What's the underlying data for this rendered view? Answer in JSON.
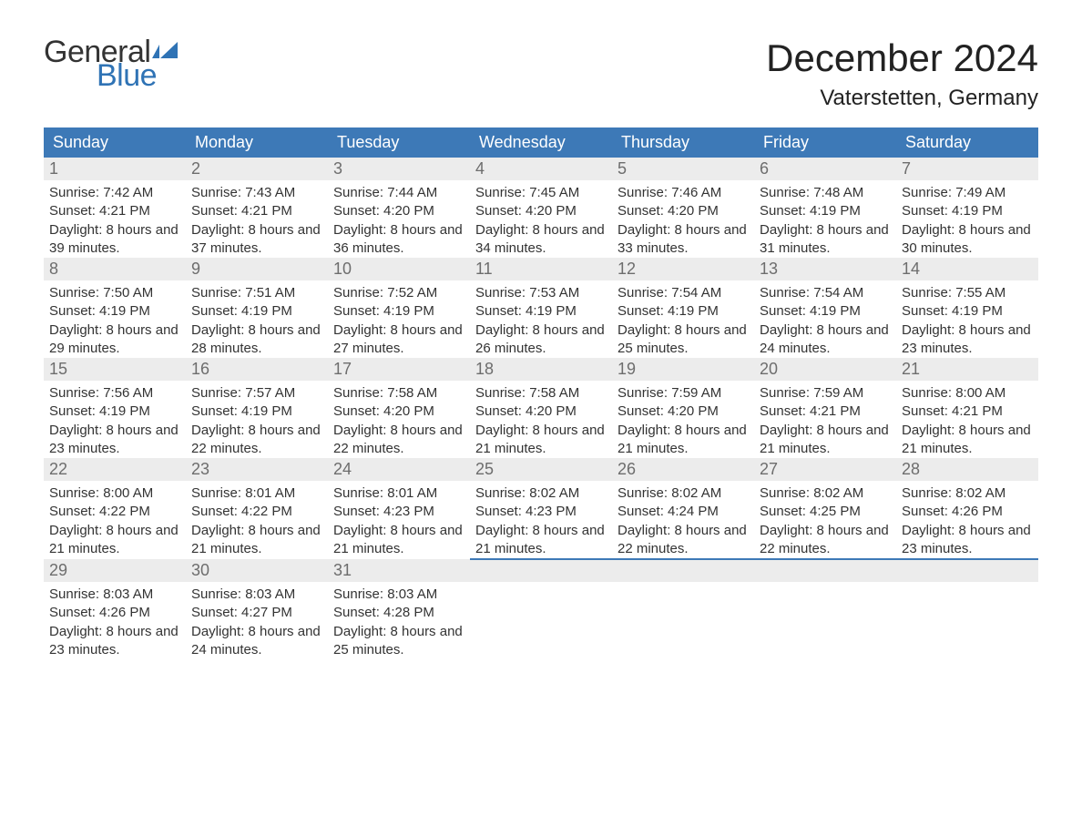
{
  "logo": {
    "word1": "General",
    "word2": "Blue",
    "word1_color": "#333333",
    "word2_color": "#2f73b5",
    "flag_color": "#2f73b5"
  },
  "header": {
    "title": "December 2024",
    "location": "Vaterstetten, Germany"
  },
  "colors": {
    "header_bg": "#3d79b7",
    "header_text": "#ffffff",
    "daynum_bg": "#ececec",
    "daynum_color": "#6d6d6d",
    "row_border": "#3d79b7",
    "body_text": "#333333",
    "page_bg": "#ffffff"
  },
  "typography": {
    "title_fontsize": 42,
    "location_fontsize": 24,
    "weekday_fontsize": 18,
    "daynum_fontsize": 18,
    "body_fontsize": 15
  },
  "weekdays": [
    "Sunday",
    "Monday",
    "Tuesday",
    "Wednesday",
    "Thursday",
    "Friday",
    "Saturday"
  ],
  "labels": {
    "sunrise": "Sunrise:",
    "sunset": "Sunset:",
    "daylight_prefix": "Daylight:"
  },
  "weeks": [
    [
      {
        "day": "1",
        "sunrise": "7:42 AM",
        "sunset": "4:21 PM",
        "daylight": "8 hours and 39 minutes."
      },
      {
        "day": "2",
        "sunrise": "7:43 AM",
        "sunset": "4:21 PM",
        "daylight": "8 hours and 37 minutes."
      },
      {
        "day": "3",
        "sunrise": "7:44 AM",
        "sunset": "4:20 PM",
        "daylight": "8 hours and 36 minutes."
      },
      {
        "day": "4",
        "sunrise": "7:45 AM",
        "sunset": "4:20 PM",
        "daylight": "8 hours and 34 minutes."
      },
      {
        "day": "5",
        "sunrise": "7:46 AM",
        "sunset": "4:20 PM",
        "daylight": "8 hours and 33 minutes."
      },
      {
        "day": "6",
        "sunrise": "7:48 AM",
        "sunset": "4:19 PM",
        "daylight": "8 hours and 31 minutes."
      },
      {
        "day": "7",
        "sunrise": "7:49 AM",
        "sunset": "4:19 PM",
        "daylight": "8 hours and 30 minutes."
      }
    ],
    [
      {
        "day": "8",
        "sunrise": "7:50 AM",
        "sunset": "4:19 PM",
        "daylight": "8 hours and 29 minutes."
      },
      {
        "day": "9",
        "sunrise": "7:51 AM",
        "sunset": "4:19 PM",
        "daylight": "8 hours and 28 minutes."
      },
      {
        "day": "10",
        "sunrise": "7:52 AM",
        "sunset": "4:19 PM",
        "daylight": "8 hours and 27 minutes."
      },
      {
        "day": "11",
        "sunrise": "7:53 AM",
        "sunset": "4:19 PM",
        "daylight": "8 hours and 26 minutes."
      },
      {
        "day": "12",
        "sunrise": "7:54 AM",
        "sunset": "4:19 PM",
        "daylight": "8 hours and 25 minutes."
      },
      {
        "day": "13",
        "sunrise": "7:54 AM",
        "sunset": "4:19 PM",
        "daylight": "8 hours and 24 minutes."
      },
      {
        "day": "14",
        "sunrise": "7:55 AM",
        "sunset": "4:19 PM",
        "daylight": "8 hours and 23 minutes."
      }
    ],
    [
      {
        "day": "15",
        "sunrise": "7:56 AM",
        "sunset": "4:19 PM",
        "daylight": "8 hours and 23 minutes."
      },
      {
        "day": "16",
        "sunrise": "7:57 AM",
        "sunset": "4:19 PM",
        "daylight": "8 hours and 22 minutes."
      },
      {
        "day": "17",
        "sunrise": "7:58 AM",
        "sunset": "4:20 PM",
        "daylight": "8 hours and 22 minutes."
      },
      {
        "day": "18",
        "sunrise": "7:58 AM",
        "sunset": "4:20 PM",
        "daylight": "8 hours and 21 minutes."
      },
      {
        "day": "19",
        "sunrise": "7:59 AM",
        "sunset": "4:20 PM",
        "daylight": "8 hours and 21 minutes."
      },
      {
        "day": "20",
        "sunrise": "7:59 AM",
        "sunset": "4:21 PM",
        "daylight": "8 hours and 21 minutes."
      },
      {
        "day": "21",
        "sunrise": "8:00 AM",
        "sunset": "4:21 PM",
        "daylight": "8 hours and 21 minutes."
      }
    ],
    [
      {
        "day": "22",
        "sunrise": "8:00 AM",
        "sunset": "4:22 PM",
        "daylight": "8 hours and 21 minutes."
      },
      {
        "day": "23",
        "sunrise": "8:01 AM",
        "sunset": "4:22 PM",
        "daylight": "8 hours and 21 minutes."
      },
      {
        "day": "24",
        "sunrise": "8:01 AM",
        "sunset": "4:23 PM",
        "daylight": "8 hours and 21 minutes."
      },
      {
        "day": "25",
        "sunrise": "8:02 AM",
        "sunset": "4:23 PM",
        "daylight": "8 hours and 21 minutes."
      },
      {
        "day": "26",
        "sunrise": "8:02 AM",
        "sunset": "4:24 PM",
        "daylight": "8 hours and 22 minutes."
      },
      {
        "day": "27",
        "sunrise": "8:02 AM",
        "sunset": "4:25 PM",
        "daylight": "8 hours and 22 minutes."
      },
      {
        "day": "28",
        "sunrise": "8:02 AM",
        "sunset": "4:26 PM",
        "daylight": "8 hours and 23 minutes."
      }
    ],
    [
      {
        "day": "29",
        "sunrise": "8:03 AM",
        "sunset": "4:26 PM",
        "daylight": "8 hours and 23 minutes."
      },
      {
        "day": "30",
        "sunrise": "8:03 AM",
        "sunset": "4:27 PM",
        "daylight": "8 hours and 24 minutes."
      },
      {
        "day": "31",
        "sunrise": "8:03 AM",
        "sunset": "4:28 PM",
        "daylight": "8 hours and 25 minutes."
      },
      null,
      null,
      null,
      null
    ]
  ]
}
